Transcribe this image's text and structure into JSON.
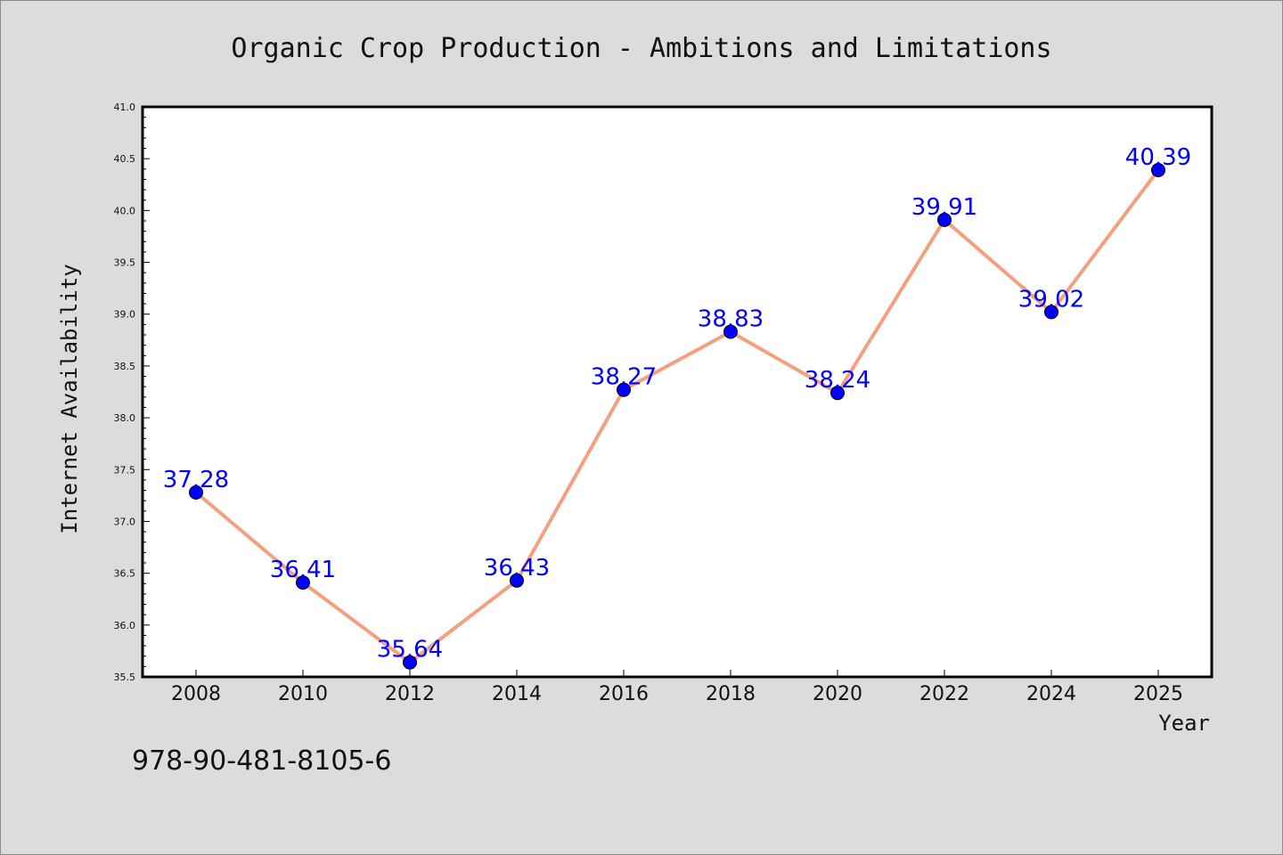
{
  "chart_data": {
    "type": "line",
    "title": "Organic Crop Production - Ambitions and Limitations",
    "xlabel": "Year",
    "ylabel": "Internet Availability",
    "x": [
      "2008",
      "2010",
      "2012",
      "2014",
      "2016",
      "2018",
      "2020",
      "2022",
      "2024",
      "2025"
    ],
    "series": [
      {
        "values": [
          37.28,
          36.41,
          35.64,
          36.43,
          38.27,
          38.83,
          38.24,
          39.91,
          39.02,
          40.39
        ]
      }
    ],
    "data_labels": [
      "37.28",
      "36.41",
      "35.64",
      "36.43",
      "38.27",
      "38.83",
      "38.24",
      "39.91",
      "39.02",
      "40.39"
    ],
    "y_ticks": [
      "35.5",
      "36.0",
      "36.5",
      "37.0",
      "37.5",
      "38.0",
      "38.5",
      "39.0",
      "39.5",
      "40.0",
      "40.5",
      "41.0"
    ],
    "ylim": [
      35.5,
      41.0
    ],
    "grid": false,
    "legend": "none"
  },
  "colors": {
    "background": "#dcdcdc",
    "plot_background": "#ffffff",
    "line": "#f4a07c",
    "marker": "#0000ff",
    "data_label": "#0000ff"
  },
  "footer": {
    "isbn": "978-90-481-8105-6"
  }
}
